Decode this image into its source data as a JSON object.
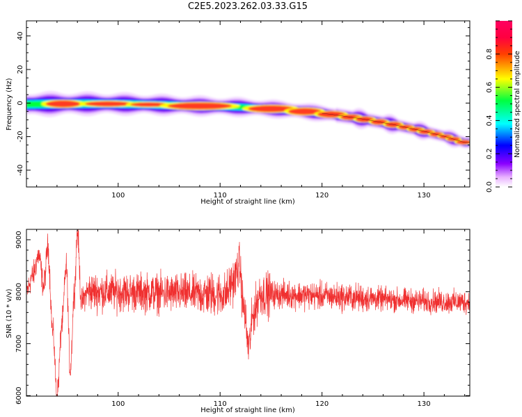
{
  "title": "C2E5.2023.262.03.33.G15",
  "chart_data": [
    {
      "type": "heatmap",
      "xlabel": "Height of straight line (km)",
      "ylabel": "Frequency (Hz)",
      "xlim": [
        91,
        134.5
      ],
      "ylim": [
        -50,
        49
      ],
      "xticks": [
        100,
        110,
        120,
        130
      ],
      "yticks": [
        40,
        20,
        0,
        -20,
        -40
      ],
      "ridge": {
        "x": [
          91,
          94,
          97,
          100,
          103,
          106,
          109,
          112,
          115,
          118,
          121,
          124,
          127,
          130,
          132,
          134
        ],
        "y": [
          -0.8,
          -0.5,
          -0.4,
          -0.5,
          -0.9,
          -1.4,
          -1.9,
          -2.4,
          -3.4,
          -4.8,
          -6.8,
          -9.5,
          -12.8,
          -16.8,
          -19.8,
          -23.5
        ]
      },
      "colorbar": {
        "label": "Normalized spectral amplitude",
        "range": [
          0,
          1
        ],
        "ticks": [
          "0.0",
          "0.2",
          "0.4",
          "0.6",
          "0.8"
        ]
      }
    },
    {
      "type": "line",
      "xlabel": "Height of straight line (km)",
      "ylabel": "SNR (10 * v/v)",
      "xlim": [
        91,
        134.5
      ],
      "ylim": [
        5990,
        9200
      ],
      "xticks": [
        100,
        110,
        120,
        130
      ],
      "yticks": [
        9000,
        8000,
        7000,
        6000
      ],
      "color": "#f03030",
      "series": {
        "x_start": 91,
        "x_end": 134.5,
        "baseline": 7850,
        "noise": 130,
        "features": [
          {
            "x": 91.0,
            "y": 8000
          },
          {
            "x": 91.6,
            "y": 8300
          },
          {
            "x": 92.2,
            "y": 8700
          },
          {
            "x": 92.7,
            "y": 8100
          },
          {
            "x": 93.1,
            "y": 8850
          },
          {
            "x": 93.6,
            "y": 7200
          },
          {
            "x": 94.0,
            "y": 6000
          },
          {
            "x": 94.5,
            "y": 7400
          },
          {
            "x": 94.9,
            "y": 8500
          },
          {
            "x": 95.3,
            "y": 6500
          },
          {
            "x": 95.7,
            "y": 8000
          },
          {
            "x": 96.0,
            "y": 9150
          },
          {
            "x": 96.4,
            "y": 7800
          },
          {
            "x": 97.0,
            "y": 8000
          },
          {
            "x": 110.5,
            "y": 7950
          },
          {
            "x": 111.3,
            "y": 8200
          },
          {
            "x": 111.9,
            "y": 8500
          },
          {
            "x": 112.3,
            "y": 7700
          },
          {
            "x": 112.8,
            "y": 6950
          },
          {
            "x": 113.3,
            "y": 7600
          },
          {
            "x": 113.9,
            "y": 7950
          },
          {
            "x": 134.5,
            "y": 7800
          }
        ]
      }
    }
  ]
}
